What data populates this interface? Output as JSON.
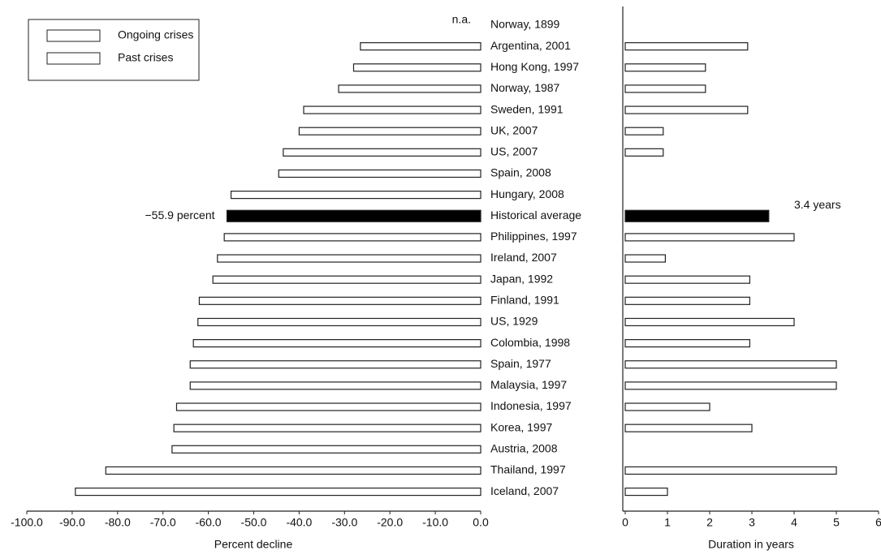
{
  "chart_data": [
    {
      "type": "bar",
      "orientation": "horizontal",
      "categories": [
        "Norway, 1899",
        "Argentina, 2001",
        "Hong Kong, 1997",
        "Norway, 1987",
        "Sweden, 1991",
        "UK, 2007",
        "US, 2007",
        "Spain, 2008",
        "Hungary, 2008",
        "Historical average",
        "Philippines, 1997",
        "Ireland, 2007",
        "Japan, 1992",
        "Finland, 1991",
        "US, 1929",
        "Colombia, 1998",
        "Spain, 1977",
        "Malaysia, 1997",
        "Indonesia, 1997",
        "Korea, 1997",
        "Austria, 2008",
        "Thailand, 1997",
        "Iceland, 2007"
      ],
      "values": [
        null,
        -26.5,
        -28,
        -31.3,
        -39,
        -40,
        -43.5,
        -44.5,
        -55,
        -55.9,
        -56.5,
        -58,
        -59,
        -62,
        -62.3,
        -63.3,
        -64,
        -64,
        -67,
        -67.6,
        -68,
        -82.6,
        -89.3
      ],
      "value_labels": [
        null,
        null,
        null,
        null,
        null,
        null,
        null,
        null,
        null,
        "−55.9 percent",
        null,
        null,
        null,
        null,
        null,
        null,
        null,
        null,
        null,
        null,
        null,
        null,
        null
      ],
      "colors": [
        "#fff",
        "#fff",
        "#fff",
        "#fff",
        "#fff",
        "#fff",
        "#fff",
        "#fff",
        "#fff",
        "#000",
        "#fff",
        "#fff",
        "#fff",
        "#fff",
        "#fff",
        "#fff",
        "#fff",
        "#fff",
        "#fff",
        "#fff",
        "#fff",
        "#fff",
        "#fff"
      ],
      "annotation": "n.a.",
      "xlim": [
        -100,
        0
      ],
      "xticks": [
        {
          "value": -100,
          "label": "-100.0"
        },
        {
          "value": -90,
          "label": "-90.0"
        },
        {
          "value": -80,
          "label": "-80.0"
        },
        {
          "value": -70,
          "label": "-70.0"
        },
        {
          "value": -60,
          "label": "-60.0"
        },
        {
          "value": -50,
          "label": "-50.0"
        },
        {
          "value": -40,
          "label": "-40.0"
        },
        {
          "value": -30,
          "label": "-30.0"
        },
        {
          "value": -20,
          "label": "-20.0"
        },
        {
          "value": -10,
          "label": "-10.0"
        },
        {
          "value": 0,
          "label": "0.0"
        }
      ],
      "xlabel": "Percent decline",
      "legend": [
        {
          "label": "Ongoing crises",
          "color": "#fff"
        },
        {
          "label": "Past crises",
          "color": "#fff"
        }
      ]
    },
    {
      "type": "bar",
      "orientation": "horizontal",
      "values": [
        null,
        2.9,
        1.9,
        1.9,
        2.9,
        0.9,
        0.9,
        null,
        null,
        3.4,
        4,
        0.95,
        2.95,
        2.95,
        4,
        2.95,
        5,
        5,
        2,
        3,
        null,
        5,
        1
      ],
      "value_labels": [
        null,
        null,
        null,
        null,
        null,
        null,
        null,
        null,
        null,
        "3.4 years",
        null,
        null,
        null,
        null,
        null,
        null,
        null,
        null,
        null,
        null,
        null,
        null,
        null
      ],
      "colors": [
        "#fff",
        "#fff",
        "#fff",
        "#fff",
        "#fff",
        "#fff",
        "#fff",
        "#fff",
        "#fff",
        "#000",
        "#fff",
        "#fff",
        "#fff",
        "#fff",
        "#fff",
        "#fff",
        "#fff",
        "#fff",
        "#fff",
        "#fff",
        "#fff",
        "#fff",
        "#fff"
      ],
      "xlim": [
        0,
        6
      ],
      "xticks": [
        0,
        1,
        2,
        3,
        4,
        5,
        6
      ],
      "xlabel": "Duration in years"
    }
  ]
}
